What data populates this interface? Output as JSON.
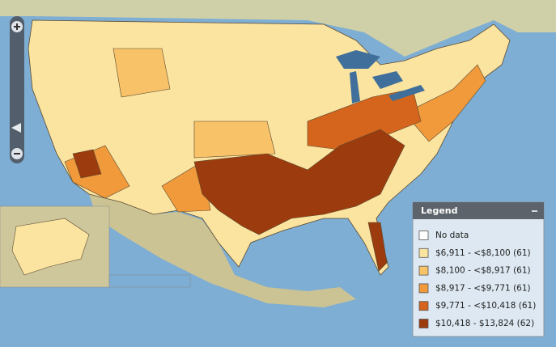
{
  "legend": {
    "title": "Legend",
    "items": [
      {
        "label": "No data",
        "color": "#ffffff"
      },
      {
        "label": "$6,911 - <$8,100 (61)",
        "color": "#fbe3a0"
      },
      {
        "label": "$8,100 - <$8,917 (61)",
        "color": "#f8c268"
      },
      {
        "label": "$8,917 - <$9,771 (61)",
        "color": "#f09a3c"
      },
      {
        "label": "$9,771 - <$10,418 (61)",
        "color": "#d5651c"
      },
      {
        "label": "$10,418 - $13,824 (62)",
        "color": "#9c3c0e"
      }
    ]
  }
}
